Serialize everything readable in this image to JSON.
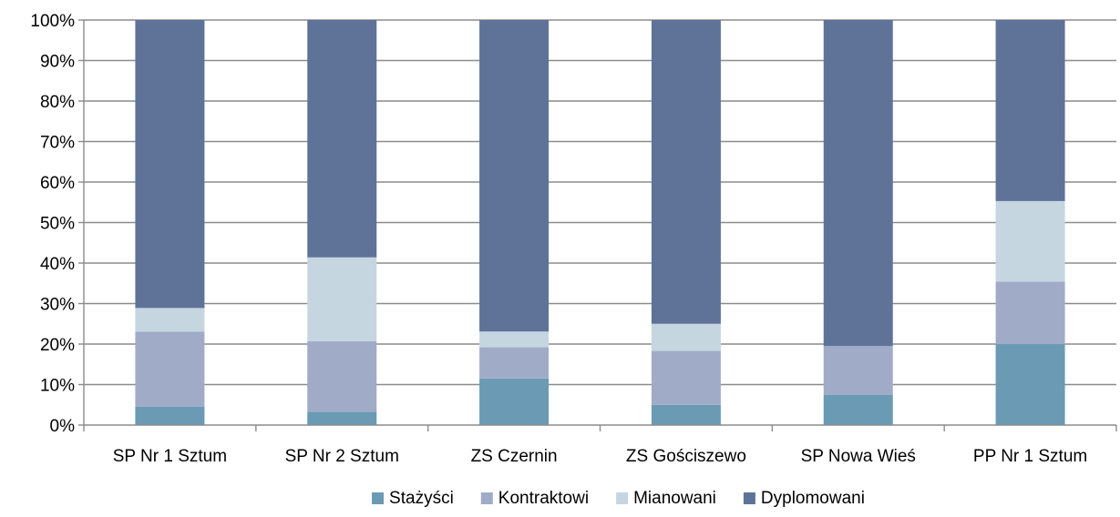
{
  "chart_data": {
    "type": "bar",
    "stacked": true,
    "percent_stacked": true,
    "categories": [
      "SP Nr 1 Sztum",
      "SP Nr 2 Sztum",
      "ZS Czernin",
      "ZS Gościszewo",
      "SP Nowa Wieś",
      "PP Nr 1 Sztum"
    ],
    "series": [
      {
        "name": "Stażyści",
        "color": "#6b9ab4",
        "values": [
          4.5,
          3.3,
          11.5,
          5.0,
          7.5,
          20.0
        ]
      },
      {
        "name": "Kontraktowi",
        "color": "#a0acc7",
        "values": [
          18.6,
          17.4,
          7.7,
          13.3,
          12.0,
          15.4
        ]
      },
      {
        "name": "Mianowani",
        "color": "#c5d6e1",
        "values": [
          5.8,
          20.7,
          3.9,
          6.7,
          0.0,
          19.9
        ]
      },
      {
        "name": "Dyplomowani",
        "color": "#5f7399",
        "values": [
          71.1,
          58.6,
          76.9,
          75.0,
          80.5,
          44.7
        ]
      }
    ],
    "ylim": [
      0,
      100
    ],
    "yticks": [
      "0%",
      "10%",
      "20%",
      "30%",
      "40%",
      "50%",
      "60%",
      "70%",
      "80%",
      "90%",
      "100%"
    ],
    "grid": true,
    "legend_position": "bottom",
    "title": "",
    "xlabel": "",
    "ylabel": ""
  }
}
